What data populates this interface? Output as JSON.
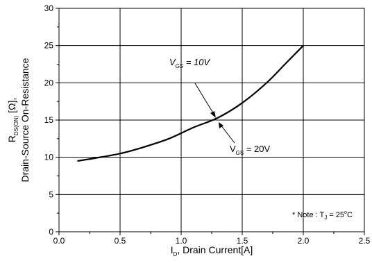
{
  "chart_data": {
    "type": "line",
    "xlim": [
      0.0,
      2.5
    ],
    "ylim": [
      0,
      30
    ],
    "grid": true,
    "x_ticks": [
      {
        "value": 0.0,
        "label": "0.0"
      },
      {
        "value": 0.5,
        "label": "0.5"
      },
      {
        "value": 1.0,
        "label": "1.0"
      },
      {
        "value": 1.5,
        "label": "1.5"
      },
      {
        "value": 2.0,
        "label": "2.0"
      },
      {
        "value": 2.5,
        "label": "2.5"
      }
    ],
    "y_ticks": [
      {
        "value": 0,
        "label": "0"
      },
      {
        "value": 5,
        "label": "5"
      },
      {
        "value": 10,
        "label": "10"
      },
      {
        "value": 15,
        "label": "15"
      },
      {
        "value": 20,
        "label": "20"
      },
      {
        "value": 25,
        "label": "25"
      },
      {
        "value": 30,
        "label": "30"
      }
    ],
    "xlabel": {
      "main": "I",
      "sub": "D",
      "rest": ", Drain Current[A]"
    },
    "ylabel": {
      "line1_main": "R",
      "line1_sub": "DS(ON)",
      "line1_rest": " [Ω],",
      "line2": "Drain-Source On-Resistance"
    },
    "series": [
      {
        "color": "#000000",
        "x": [
          0.15,
          0.3,
          0.5,
          0.7,
          0.9,
          1.1,
          1.3,
          1.5,
          1.7,
          1.85,
          2.0
        ],
        "y": [
          9.5,
          9.9,
          10.5,
          11.4,
          12.5,
          14.0,
          15.3,
          17.3,
          20.0,
          22.5,
          25.0
        ]
      }
    ],
    "annotations": [
      {
        "main": "V",
        "sub": "GS",
        "rest": " = 10V",
        "italic": true
      },
      {
        "main": "V",
        "sub": "GS",
        "rest": " = 20V",
        "italic": false
      }
    ],
    "note": {
      "prefix": "* Note : T",
      "sub": "J",
      "rest": " = 25",
      "sup": "o",
      "unit": "C"
    }
  }
}
